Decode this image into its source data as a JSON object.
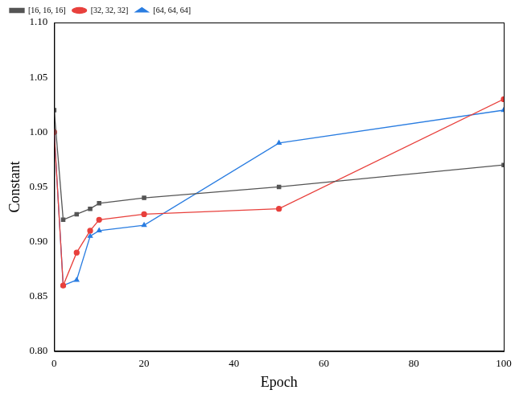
{
  "chart_data": {
    "type": "line",
    "x_label": "Epoch",
    "y_label": "Constant",
    "x": [
      0,
      2,
      5,
      8,
      10,
      20,
      50,
      100
    ],
    "series": [
      {
        "name": "[16, 16, 16]",
        "color": "#555555",
        "marker": "square",
        "line_style": "solid",
        "values": [
          1.02,
          0.92,
          0.925,
          0.93,
          0.935,
          0.94,
          0.95,
          0.97
        ]
      },
      {
        "name": "[32, 32, 32]",
        "color": "#e8403c",
        "marker": "circle",
        "line_style": "solid",
        "values": [
          1.0,
          0.86,
          0.89,
          0.91,
          0.92,
          0.925,
          0.93,
          1.03
        ]
      },
      {
        "name": "[64, 64, 64]",
        "color": "#2a7de1",
        "marker": "triangle",
        "line_style": "solid",
        "values": [
          1.0,
          0.86,
          0.865,
          0.905,
          0.91,
          0.915,
          0.99,
          1.02
        ]
      }
    ],
    "xlim": [
      0,
      100
    ],
    "xticks": [
      0,
      20,
      40,
      60,
      80,
      100
    ],
    "ylim": [
      0.8,
      1.1
    ],
    "yticks": [
      {
        "value": 0.8,
        "label": "0.80"
      },
      0.85,
      {
        "value": 0.9,
        "label": "0.90"
      },
      0.95,
      {
        "value": 1.0,
        "label": "1.00"
      },
      1.05,
      {
        "value": 1.1,
        "label": "1.10"
      }
    ],
    "grid": false,
    "legend": "top-left"
  }
}
